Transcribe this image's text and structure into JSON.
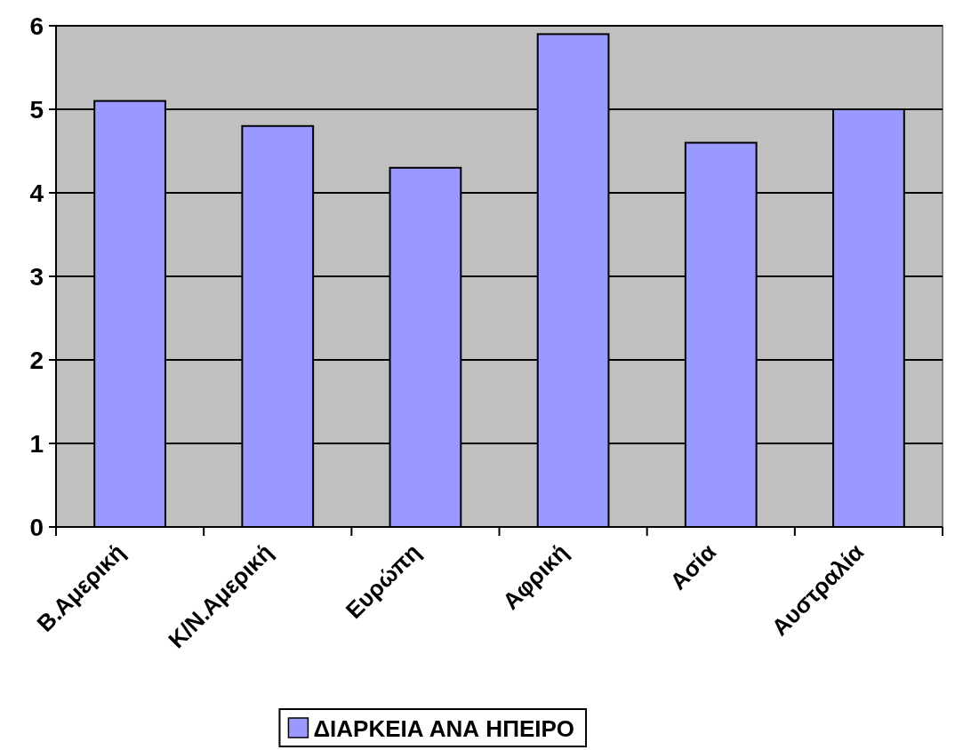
{
  "chart_data": {
    "type": "bar",
    "categories": [
      "Β.Αμερική",
      "Κ/Ν.Αμερική",
      "Ευρώπη",
      "Αφρική",
      "Ασία",
      "Αυστραλία"
    ],
    "series": [
      {
        "name": "ΔΙΑΡΚΕΙΑ ΑΝΑ ΗΠΕΙΡΟ",
        "color": "#9999ff",
        "values": [
          5.1,
          4.8,
          4.3,
          5.9,
          4.6,
          5.0
        ]
      }
    ],
    "ylim": [
      0,
      6
    ],
    "yticks": [
      0,
      1,
      2,
      3,
      4,
      5,
      6
    ],
    "grid": "y",
    "legend": "bottom"
  }
}
